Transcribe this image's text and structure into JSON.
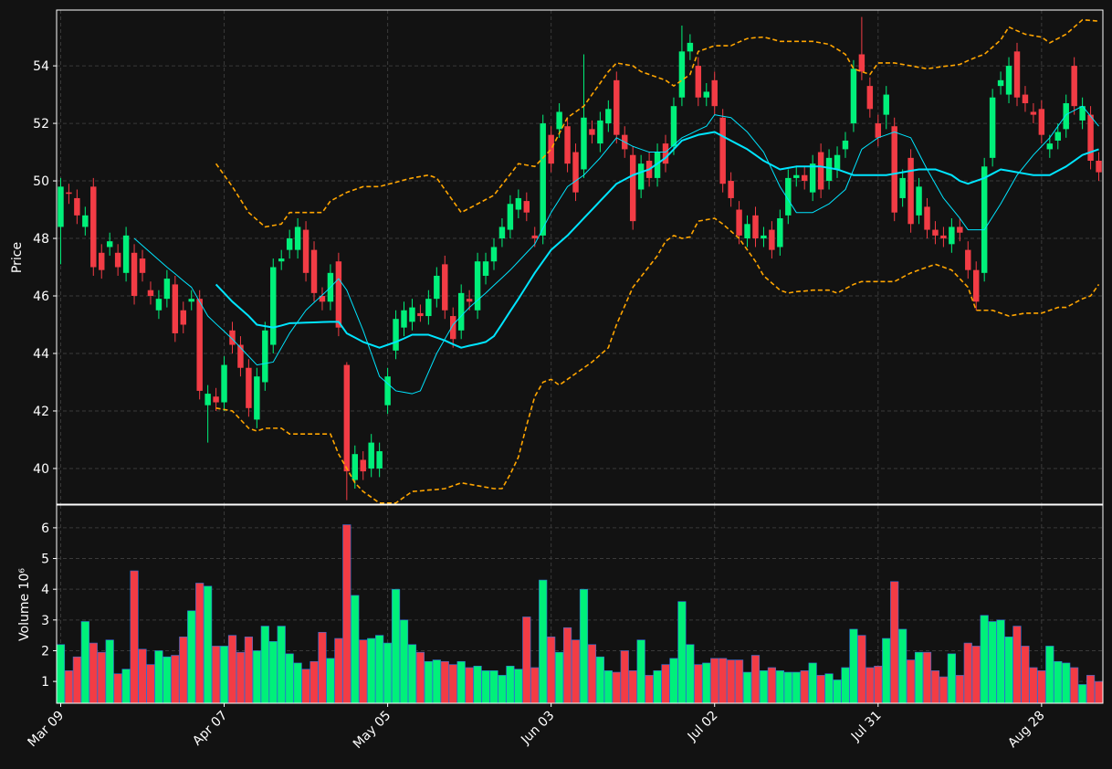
{
  "chart_data": {
    "type": "candlestick",
    "categories": [
      "Mar 09",
      null,
      null,
      null,
      null,
      null,
      null,
      null,
      null,
      null,
      null,
      null,
      null,
      null,
      null,
      null,
      null,
      null,
      null,
      null,
      "Apr 07",
      null,
      null,
      null,
      null,
      null,
      null,
      null,
      null,
      null,
      null,
      null,
      null,
      null,
      null,
      null,
      null,
      null,
      null,
      null,
      "May 05",
      null,
      null,
      null,
      null,
      null,
      null,
      null,
      null,
      null,
      null,
      null,
      null,
      null,
      null,
      null,
      null,
      null,
      null,
      null,
      "Jun 03",
      null,
      null,
      null,
      null,
      null,
      null,
      null,
      null,
      null,
      null,
      null,
      null,
      null,
      null,
      null,
      null,
      null,
      null,
      null,
      "Jul 02",
      null,
      null,
      null,
      null,
      null,
      null,
      null,
      null,
      null,
      null,
      null,
      null,
      null,
      null,
      null,
      null,
      null,
      null,
      null,
      "Jul 31",
      null,
      null,
      null,
      null,
      null,
      null,
      null,
      null,
      null,
      null,
      null,
      null,
      null,
      null,
      null,
      null,
      null,
      null,
      null,
      "Aug 28",
      null,
      null,
      null,
      null,
      null,
      null,
      null
    ],
    "open": [
      48.4,
      49.6,
      49.4,
      48.4,
      49.8,
      47.5,
      47.7,
      47.5,
      46.8,
      47.5,
      47.3,
      46.2,
      45.5,
      45.9,
      46.4,
      45.5,
      45.8,
      45.9,
      42.2,
      42.5,
      42.3,
      44.8,
      44.3,
      43.5,
      41.7,
      43.0,
      44.3,
      47.2,
      47.6,
      47.6,
      48.3,
      47.6,
      46.0,
      45.8,
      47.2,
      43.6,
      39.6,
      40.3,
      40.0,
      40.0,
      42.2,
      44.1,
      44.9,
      45.1,
      45.4,
      45.3,
      45.9,
      47.1,
      45.3,
      44.8,
      45.9,
      45.5,
      46.7,
      47.2,
      48.0,
      48.3,
      49.0,
      49.3,
      48.1,
      48.1,
      51.6,
      51.8,
      51.9,
      51.0,
      50.4,
      51.8,
      51.3,
      52.0,
      53.5,
      51.6,
      50.9,
      49.7,
      50.7,
      50.1,
      51.3,
      51.2,
      52.9,
      54.5,
      54.0,
      52.9,
      53.5,
      52.2,
      50.0,
      49.0,
      48.0,
      48.8,
      48.0,
      48.3,
      47.7,
      48.8,
      50.1,
      50.2,
      49.6,
      51.0,
      50.0,
      50.4,
      51.1,
      52.0,
      54.4,
      53.3,
      52.0,
      52.3,
      51.9,
      49.4,
      50.8,
      48.8,
      49.1,
      48.3,
      48.1,
      47.8,
      48.4,
      47.6,
      46.9,
      46.8,
      50.8,
      53.3,
      53.0,
      54.5,
      53.0,
      52.4,
      52.5,
      51.1,
      51.4,
      51.8,
      54.0,
      52.1,
      52.3,
      50.7
    ],
    "high": [
      50.1,
      49.9,
      49.7,
      49.1,
      50.1,
      47.8,
      48.2,
      47.8,
      48.4,
      47.8,
      47.6,
      46.5,
      46.2,
      46.9,
      46.7,
      45.8,
      46.2,
      46.2,
      42.9,
      42.8,
      43.9,
      45.1,
      44.6,
      43.8,
      43.5,
      45.1,
      47.3,
      47.6,
      48.3,
      48.7,
      48.6,
      47.9,
      46.3,
      47.1,
      47.5,
      43.7,
      40.8,
      40.6,
      41.2,
      40.9,
      43.5,
      45.5,
      45.8,
      45.9,
      45.7,
      46.2,
      47.0,
      47.4,
      45.6,
      46.4,
      46.2,
      47.5,
      47.5,
      48.0,
      48.7,
      49.5,
      49.7,
      49.6,
      48.4,
      52.3,
      51.9,
      52.7,
      52.2,
      51.3,
      54.4,
      52.1,
      52.4,
      52.8,
      53.8,
      51.9,
      51.2,
      50.9,
      51.0,
      51.3,
      51.6,
      52.9,
      55.4,
      55.1,
      54.3,
      53.4,
      53.8,
      52.5,
      50.3,
      49.3,
      48.8,
      49.1,
      48.4,
      48.6,
      49.0,
      50.4,
      50.5,
      50.5,
      50.9,
      51.3,
      51.1,
      51.2,
      51.7,
      54.2,
      55.7,
      53.6,
      52.3,
      53.3,
      52.2,
      50.4,
      51.1,
      50.1,
      49.4,
      48.6,
      48.4,
      48.7,
      48.7,
      47.9,
      47.2,
      50.8,
      53.2,
      53.8,
      54.3,
      54.8,
      53.3,
      52.7,
      52.8,
      51.6,
      52.0,
      53.0,
      54.3,
      52.9,
      52.6,
      51.0
    ],
    "low": [
      47.1,
      49.2,
      48.5,
      48.1,
      46.7,
      46.6,
      47.4,
      46.7,
      46.5,
      45.7,
      46.5,
      45.7,
      45.2,
      45.6,
      44.4,
      44.7,
      45.5,
      42.4,
      40.9,
      42.0,
      42.0,
      44.0,
      43.2,
      41.8,
      41.4,
      42.7,
      44.0,
      46.9,
      47.3,
      47.3,
      46.5,
      45.8,
      45.5,
      45.5,
      44.6,
      38.9,
      39.3,
      39.6,
      39.7,
      39.7,
      41.9,
      43.8,
      44.6,
      44.8,
      45.1,
      45.0,
      45.6,
      45.2,
      44.2,
      44.5,
      45.5,
      45.2,
      46.4,
      46.9,
      47.7,
      48.0,
      48.7,
      48.6,
      47.7,
      47.8,
      50.3,
      51.5,
      50.3,
      49.3,
      50.1,
      51.3,
      51.0,
      51.7,
      51.3,
      50.8,
      48.3,
      49.4,
      49.8,
      49.8,
      50.3,
      50.9,
      52.6,
      54.2,
      52.6,
      52.6,
      52.3,
      49.6,
      49.1,
      47.8,
      47.7,
      47.7,
      47.7,
      47.3,
      47.4,
      48.5,
      49.8,
      49.7,
      49.3,
      49.4,
      49.7,
      50.1,
      50.8,
      51.7,
      53.5,
      52.2,
      51.2,
      51.8,
      48.6,
      49.1,
      48.2,
      48.5,
      48.0,
      47.8,
      47.7,
      47.5,
      47.9,
      46.6,
      45.5,
      46.5,
      50.5,
      53.0,
      52.7,
      52.6,
      52.4,
      52.0,
      51.3,
      50.8,
      51.1,
      51.5,
      52.3,
      51.8,
      50.4,
      50.0
    ],
    "close": [
      49.8,
      49.55,
      48.8,
      48.8,
      47.0,
      46.9,
      47.9,
      47.0,
      48.1,
      46.0,
      46.8,
      46.0,
      45.9,
      46.6,
      44.7,
      45.0,
      45.9,
      42.7,
      42.6,
      42.3,
      43.6,
      44.3,
      43.5,
      42.1,
      43.2,
      44.8,
      47.0,
      47.3,
      48.0,
      48.4,
      46.8,
      46.1,
      45.8,
      46.8,
      44.9,
      39.9,
      40.5,
      39.9,
      40.9,
      40.6,
      43.2,
      45.2,
      45.5,
      45.6,
      45.3,
      45.9,
      46.7,
      45.5,
      44.5,
      46.1,
      45.8,
      47.2,
      47.2,
      47.7,
      48.4,
      49.2,
      49.4,
      48.9,
      48.0,
      52.0,
      50.6,
      52.4,
      50.6,
      49.6,
      52.2,
      51.6,
      52.1,
      52.5,
      51.6,
      51.1,
      48.6,
      50.6,
      50.1,
      51.0,
      50.6,
      52.6,
      54.5,
      54.8,
      52.9,
      53.1,
      52.6,
      49.9,
      49.4,
      48.1,
      48.5,
      48.0,
      48.1,
      47.6,
      48.7,
      50.1,
      50.2,
      50.0,
      50.6,
      49.7,
      50.8,
      50.9,
      51.4,
      53.9,
      53.8,
      52.5,
      51.5,
      53.0,
      48.9,
      50.1,
      48.5,
      49.8,
      48.3,
      48.1,
      48.0,
      48.4,
      48.2,
      46.9,
      45.8,
      50.5,
      52.9,
      53.5,
      54.0,
      52.9,
      52.7,
      52.3,
      51.6,
      51.3,
      51.7,
      52.7,
      52.6,
      52.6,
      50.7,
      50.3
    ],
    "volume": [
      2.2,
      1.35,
      1.8,
      2.95,
      2.25,
      1.95,
      2.35,
      1.25,
      1.4,
      4.6,
      2.05,
      1.55,
      2.0,
      1.8,
      1.85,
      2.45,
      3.3,
      4.2,
      4.1,
      2.15,
      2.15,
      2.5,
      1.95,
      2.45,
      2.0,
      2.8,
      2.3,
      2.8,
      1.9,
      1.6,
      1.4,
      1.65,
      2.6,
      1.75,
      2.4,
      6.1,
      3.8,
      2.35,
      2.4,
      2.5,
      2.25,
      4.0,
      3.0,
      2.2,
      1.95,
      1.65,
      1.7,
      1.65,
      1.55,
      1.65,
      1.45,
      1.5,
      1.35,
      1.35,
      1.2,
      1.5,
      1.4,
      3.1,
      1.45,
      4.3,
      2.45,
      1.95,
      2.75,
      2.35,
      4.0,
      2.2,
      1.8,
      1.35,
      1.3,
      2.0,
      1.35,
      2.35,
      1.2,
      1.35,
      1.55,
      1.75,
      3.6,
      2.2,
      1.55,
      1.6,
      1.75,
      1.75,
      1.7,
      1.7,
      1.3,
      1.85,
      1.35,
      1.45,
      1.35,
      1.3,
      1.3,
      1.35,
      1.6,
      1.2,
      1.25,
      1.05,
      1.45,
      2.7,
      2.5,
      1.45,
      1.5,
      2.4,
      4.25,
      2.7,
      1.7,
      1.95,
      1.95,
      1.35,
      1.15,
      1.9,
      1.2,
      2.25,
      2.15,
      3.15,
      2.95,
      3.0,
      2.45,
      2.8,
      2.15,
      1.45,
      1.35,
      2.15,
      1.65,
      1.6,
      1.45,
      0.9,
      1.2,
      1.0
    ],
    "up_color": "#00f07a",
    "down_color": "#f23c45",
    "lines": [
      {
        "color": "#00e5ff",
        "width": 1,
        "dash": false,
        "values": [
          null,
          null,
          null,
          null,
          null,
          null,
          null,
          null,
          null,
          48.0,
          47.75,
          47.5,
          47.25,
          47.0,
          46.77,
          46.53,
          46.3,
          45.8,
          45.3,
          45.03,
          44.77,
          44.5,
          44.2,
          43.9,
          43.6,
          43.65,
          43.7,
          44.2,
          44.7,
          45.1,
          45.5,
          45.77,
          46.03,
          46.3,
          46.6,
          46.2,
          45.5,
          44.8,
          44.0,
          43.2,
          42.95,
          42.7,
          42.65,
          42.6,
          42.7,
          43.35,
          44.0,
          44.5,
          45.0,
          45.3,
          45.6,
          45.85,
          46.1,
          46.37,
          46.63,
          46.9,
          47.2,
          47.5,
          47.8,
          48.35,
          48.9,
          49.35,
          49.8,
          50.0,
          50.2,
          50.5,
          50.8,
          51.15,
          51.5,
          51.35,
          51.2,
          51.1,
          51.0,
          51.0,
          51.0,
          51.25,
          51.5,
          51.63,
          51.77,
          51.9,
          52.3,
          52.25,
          52.2,
          51.95,
          51.7,
          51.35,
          51.0,
          50.4,
          49.8,
          49.35,
          48.9,
          48.9,
          48.9,
          49.05,
          49.2,
          49.45,
          49.7,
          50.4,
          51.1,
          51.3,
          51.5,
          51.6,
          51.7,
          51.6,
          51.5,
          50.95,
          50.4,
          49.9,
          49.4,
          49.05,
          48.7,
          48.3,
          48.3,
          48.3,
          48.75,
          49.2,
          49.7,
          50.2,
          50.55,
          50.9,
          51.2,
          51.5,
          51.9,
          52.3,
          52.45,
          52.6,
          52.25,
          51.9
        ]
      },
      {
        "color": "#00e5ff",
        "width": 2,
        "dash": false,
        "values": [
          null,
          null,
          null,
          null,
          null,
          null,
          null,
          null,
          null,
          null,
          null,
          null,
          null,
          null,
          null,
          null,
          null,
          null,
          null,
          46.4,
          46.1,
          45.8,
          45.55,
          45.3,
          45.0,
          44.95,
          44.9,
          44.97,
          45.05,
          45.06,
          45.07,
          45.08,
          45.09,
          45.1,
          45.1,
          44.7,
          44.55,
          44.4,
          44.3,
          44.2,
          44.3,
          44.4,
          44.52,
          44.65,
          44.65,
          44.65,
          44.55,
          44.45,
          44.32,
          44.2,
          44.27,
          44.33,
          44.4,
          44.6,
          45.03,
          45.47,
          45.9,
          46.35,
          46.8,
          47.2,
          47.6,
          47.85,
          48.1,
          48.4,
          48.7,
          49.0,
          49.3,
          49.6,
          49.9,
          50.05,
          50.2,
          50.3,
          50.4,
          50.6,
          50.8,
          51.1,
          51.4,
          51.5,
          51.6,
          51.65,
          51.7,
          51.55,
          51.4,
          51.25,
          51.1,
          50.9,
          50.7,
          50.55,
          50.4,
          50.45,
          50.5,
          50.5,
          50.5,
          50.5,
          50.45,
          50.4,
          50.3,
          50.2,
          50.2,
          50.2,
          50.2,
          50.2,
          50.25,
          50.3,
          50.35,
          50.4,
          50.4,
          50.4,
          50.3,
          50.2,
          50.0,
          49.9,
          50.0,
          50.1,
          50.25,
          50.4,
          50.35,
          50.3,
          50.25,
          50.2,
          50.2,
          50.2,
          50.35,
          50.5,
          50.7,
          50.9,
          51.0,
          51.1
        ]
      },
      {
        "color": "#ffa500",
        "width": 1.6,
        "dash": true,
        "values": [
          null,
          null,
          null,
          null,
          null,
          null,
          null,
          null,
          null,
          null,
          null,
          null,
          null,
          null,
          null,
          null,
          null,
          null,
          null,
          50.6,
          50.2,
          49.8,
          49.35,
          48.9,
          48.65,
          48.4,
          48.45,
          48.5,
          48.9,
          48.9,
          48.9,
          48.9,
          48.9,
          49.3,
          49.45,
          49.6,
          49.7,
          49.8,
          49.8,
          49.8,
          49.88,
          49.95,
          50.03,
          50.1,
          50.15,
          50.2,
          50.1,
          49.7,
          49.3,
          48.9,
          49.05,
          49.2,
          49.35,
          49.5,
          49.87,
          50.23,
          50.6,
          50.55,
          50.5,
          50.8,
          51.1,
          51.65,
          52.2,
          52.4,
          52.6,
          53.0,
          53.4,
          53.8,
          54.1,
          54.05,
          54.0,
          53.8,
          53.7,
          53.6,
          53.5,
          53.3,
          53.5,
          53.7,
          54.5,
          54.6,
          54.7,
          54.7,
          54.7,
          54.83,
          54.95,
          54.98,
          55.0,
          54.93,
          54.85,
          54.85,
          54.85,
          54.85,
          54.85,
          54.8,
          54.75,
          54.58,
          54.4,
          53.9,
          53.8,
          53.7,
          54.1,
          54.1,
          54.1,
          54.05,
          54.0,
          53.95,
          53.9,
          53.94,
          53.98,
          54.01,
          54.05,
          54.18,
          54.3,
          54.4,
          54.65,
          54.9,
          55.35,
          55.22,
          55.1,
          55.05,
          55.0,
          54.8,
          54.95,
          55.1,
          55.35,
          55.6,
          55.58,
          55.55
        ]
      },
      {
        "color": "#ffa500",
        "width": 1.6,
        "dash": true,
        "values": [
          null,
          null,
          null,
          null,
          null,
          null,
          null,
          null,
          null,
          null,
          null,
          null,
          null,
          null,
          null,
          null,
          null,
          null,
          null,
          42.1,
          42.05,
          42.0,
          41.7,
          41.4,
          41.3,
          41.4,
          41.4,
          41.4,
          41.2,
          41.2,
          41.2,
          41.2,
          41.2,
          41.2,
          40.5,
          40.0,
          39.5,
          39.2,
          39.0,
          38.8,
          38.8,
          38.8,
          39.0,
          39.2,
          39.22,
          39.25,
          39.27,
          39.3,
          39.4,
          39.5,
          39.45,
          39.4,
          39.35,
          39.3,
          39.3,
          39.8,
          40.4,
          41.5,
          42.5,
          43.0,
          43.1,
          42.9,
          43.1,
          43.3,
          43.5,
          43.7,
          43.95,
          44.2,
          45.0,
          45.65,
          46.3,
          46.67,
          47.03,
          47.4,
          47.9,
          48.1,
          48.0,
          48.05,
          48.6,
          48.65,
          48.7,
          48.5,
          48.25,
          48.0,
          47.6,
          47.2,
          46.7,
          46.45,
          46.2,
          46.1,
          46.15,
          46.17,
          46.2,
          46.2,
          46.2,
          46.1,
          46.25,
          46.4,
          46.5,
          46.5,
          46.5,
          46.5,
          46.5,
          46.65,
          46.8,
          46.9,
          47.0,
          47.1,
          47.0,
          46.9,
          46.6,
          46.3,
          45.5,
          45.5,
          45.5,
          45.4,
          45.3,
          45.35,
          45.4,
          45.4,
          45.4,
          45.5,
          45.6,
          45.6,
          45.75,
          45.9,
          46.0,
          46.4
        ]
      }
    ],
    "y_label": "Price",
    "ylim": [
      38.76,
      55.94
    ],
    "yticks": [
      40,
      42,
      44,
      46,
      48,
      50,
      52,
      54
    ],
    "volume_label": "Volume  10⁶",
    "volume_ylim": [
      0.29,
      6.74
    ],
    "volume_yticks": [
      1,
      2,
      3,
      4,
      5,
      6
    ],
    "grid": true
  }
}
